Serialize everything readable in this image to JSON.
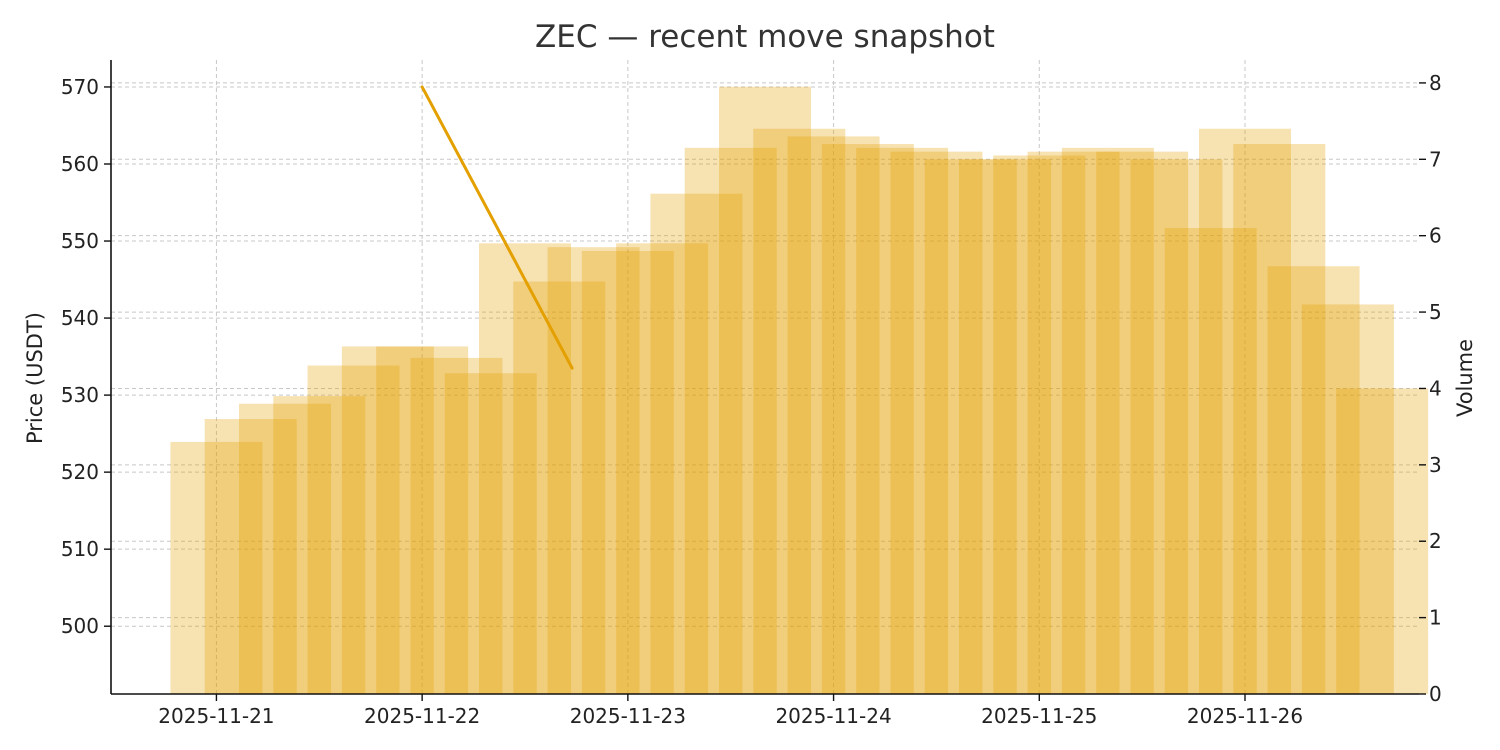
{
  "chart_data": {
    "type": "line",
    "title": "ZEC — recent move snapshot",
    "ylabel": "Price (USDT)",
    "y2label": "Volume",
    "x_ticks": [
      "2025-11-21",
      "2025-11-22",
      "2025-11-23",
      "2025-11-24",
      "2025-11-25",
      "2025-11-26"
    ],
    "xlim": [
      "2025-11-20T11:42",
      "2025-11-26T20:18"
    ],
    "ylim": [
      491.2,
      573.5
    ],
    "y_ticks": [
      500,
      510,
      520,
      530,
      540,
      550,
      560,
      570
    ],
    "y2lim": [
      0,
      8.3
    ],
    "y2_ticks": [
      0,
      1,
      2,
      3,
      4,
      5,
      6,
      7,
      8
    ],
    "grid": true,
    "colors": {
      "series": "#E3A000"
    },
    "series": [
      {
        "type": "line",
        "axis": "left",
        "x": [
          "2025-11-22T00:00",
          "2025-11-22T17:30"
        ],
        "values": [
          570,
          533.5
        ]
      },
      {
        "type": "bar",
        "axis": "right",
        "note_opacity": 0.3,
        "bars": [
          [
            "2025-11-21T00:00",
            3.3
          ],
          [
            "2025-11-21T04:00",
            3.6
          ],
          [
            "2025-11-21T08:00",
            3.8
          ],
          [
            "2025-11-21T12:00",
            3.9
          ],
          [
            "2025-11-21T16:00",
            4.3
          ],
          [
            "2025-11-21T20:00",
            4.55
          ],
          [
            "2025-11-22T00:00",
            4.55
          ],
          [
            "2025-11-22T04:00",
            4.4
          ],
          [
            "2025-11-22T08:00",
            4.2
          ],
          [
            "2025-11-22T12:00",
            5.9
          ],
          [
            "2025-11-22T16:00",
            5.4
          ],
          [
            "2025-11-22T20:00",
            5.85
          ],
          [
            "2025-11-23T00:00",
            5.8
          ],
          [
            "2025-11-23T04:00",
            5.9
          ],
          [
            "2025-11-23T08:00",
            6.55
          ],
          [
            "2025-11-23T12:00",
            7.15
          ],
          [
            "2025-11-23T16:00",
            7.95
          ],
          [
            "2025-11-23T20:00",
            7.4
          ],
          [
            "2025-11-24T00:00",
            7.3
          ],
          [
            "2025-11-24T04:00",
            7.2
          ],
          [
            "2025-11-24T08:00",
            7.15
          ],
          [
            "2025-11-24T12:00",
            7.1
          ],
          [
            "2025-11-24T16:00",
            7.0
          ],
          [
            "2025-11-24T20:00",
            7.0
          ],
          [
            "2025-11-25T00:00",
            7.05
          ],
          [
            "2025-11-25T04:00",
            7.1
          ],
          [
            "2025-11-25T08:00",
            7.15
          ],
          [
            "2025-11-25T12:00",
            7.1
          ],
          [
            "2025-11-25T16:00",
            7.0
          ],
          [
            "2025-11-25T20:00",
            6.1
          ],
          [
            "2025-11-26T00:00",
            7.4
          ],
          [
            "2025-11-26T04:00",
            7.2
          ],
          [
            "2025-11-26T08:00",
            5.6
          ],
          [
            "2025-11-26T12:00",
            5.1
          ],
          [
            "2025-11-26T16:00",
            4.0
          ]
        ]
      }
    ]
  }
}
